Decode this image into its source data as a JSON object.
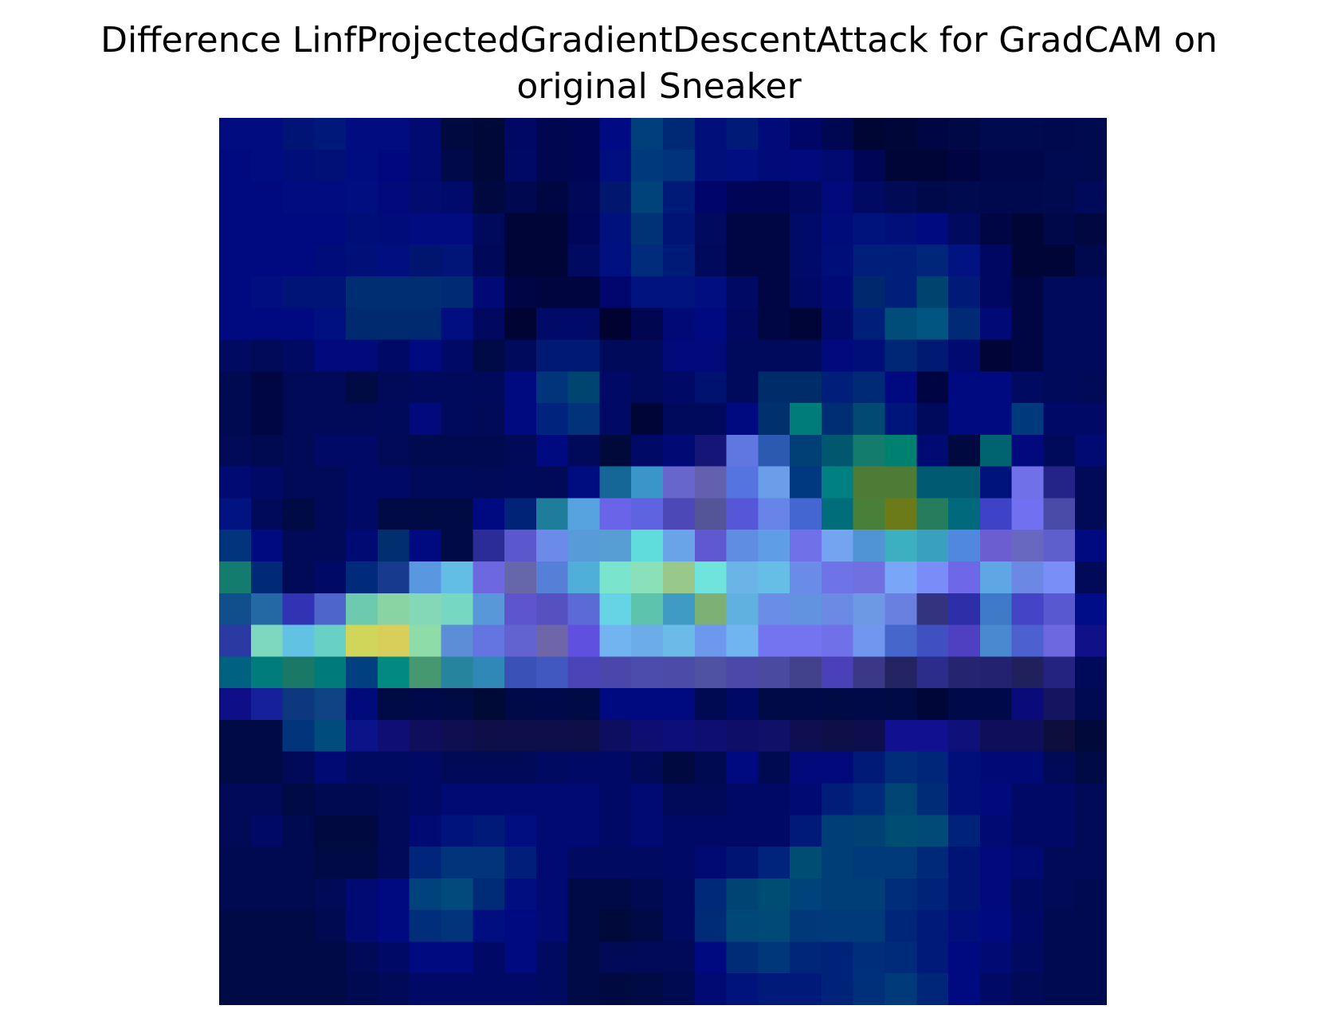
{
  "chart_data": {
    "type": "heatmap",
    "title": [
      "Difference LinfProjectedGradientDescentAttack for GradCAM on",
      "original Sneaker"
    ],
    "xlabel": "",
    "ylabel": "",
    "axes_visible": false,
    "grid": false,
    "legend": "none",
    "rows": 28,
    "cols": 28,
    "cells": [
      [
        "#000c80",
        "#000c80",
        "#001475",
        "#00187a",
        "#000c80",
        "#000c80",
        "#000a70",
        "#000a40",
        "#00083a",
        "#000866",
        "#000650",
        "#000654",
        "#000b83",
        "#013e7c",
        "#002975",
        "#000f7a",
        "#001a77",
        "#000b7a",
        "#000665",
        "#000752",
        "#000633",
        "#000638",
        "#000543",
        "#000846",
        "#000a4e",
        "#000a4e",
        "#00094d",
        "#000a4e"
      ],
      [
        "#000a80",
        "#000c80",
        "#000e7a",
        "#001077",
        "#000d80",
        "#000880",
        "#000a70",
        "#000a4a",
        "#00083a",
        "#000a66",
        "#000650",
        "#000654",
        "#000e80",
        "#013a7c",
        "#00337b",
        "#000f7a",
        "#000e80",
        "#000b7a",
        "#000a7a",
        "#000a70",
        "#000653",
        "#000538",
        "#000538",
        "#000541",
        "#00074a",
        "#00074a",
        "#000a50",
        "#000a4e"
      ],
      [
        "#000a80",
        "#000a80",
        "#000c80",
        "#000c80",
        "#000e80",
        "#000a7a",
        "#000c70",
        "#000a6a",
        "#000840",
        "#000850",
        "#000641",
        "#000857",
        "#00166f",
        "#00427a",
        "#001b77",
        "#00056b",
        "#000655",
        "#000653",
        "#000860",
        "#000a7a",
        "#000a62",
        "#000a55",
        "#000a4b",
        "#000a4e",
        "#00094d",
        "#00094d",
        "#000a4e",
        "#000a5a"
      ],
      [
        "#000a80",
        "#000a80",
        "#000a80",
        "#000a80",
        "#000e7a",
        "#000c7a",
        "#000c80",
        "#000c80",
        "#000a5c",
        "#000538",
        "#000538",
        "#000659",
        "#00117d",
        "#003276",
        "#001475",
        "#000a5f",
        "#000641",
        "#000641",
        "#000a68",
        "#000c7a",
        "#00137d",
        "#000f7a",
        "#000a80",
        "#000a5e",
        "#000643",
        "#000538",
        "#000849",
        "#000741"
      ],
      [
        "#000a80",
        "#000a80",
        "#000a80",
        "#000c7a",
        "#001079",
        "#000e80",
        "#001470",
        "#001577",
        "#00085a",
        "#000538",
        "#000538",
        "#000a60",
        "#00107e",
        "#002c7b",
        "#001a77",
        "#000a5c",
        "#000641",
        "#000641",
        "#000a68",
        "#000e7a",
        "#001f7a",
        "#001f7a",
        "#00267a",
        "#001380",
        "#000763",
        "#000538",
        "#000538",
        "#00094d"
      ],
      [
        "#000a80",
        "#000e80",
        "#001377",
        "#001477",
        "#002e73",
        "#002e73",
        "#002e73",
        "#002a74",
        "#000a76",
        "#000645",
        "#000540",
        "#000540",
        "#00066d",
        "#00137e",
        "#00137e",
        "#000e80",
        "#000a64",
        "#000641",
        "#000a66",
        "#000a76",
        "#00286d",
        "#001f7a",
        "#00436f",
        "#001a77",
        "#000763",
        "#000643",
        "#000a5c",
        "#000a5c"
      ],
      [
        "#000a80",
        "#000a80",
        "#000a80",
        "#00107e",
        "#002a70",
        "#002a70",
        "#002a70",
        "#000e7f",
        "#000860",
        "#000432",
        "#000a68",
        "#000a68",
        "#000330",
        "#000650",
        "#000a76",
        "#000a80",
        "#000860",
        "#000641",
        "#000537",
        "#000a6d",
        "#001f7a",
        "#004d79",
        "#005680",
        "#002a75",
        "#000a76",
        "#000643",
        "#000a5c",
        "#000a5c"
      ],
      [
        "#000a60",
        "#000a56",
        "#000a62",
        "#000a7a",
        "#000a7a",
        "#000a66",
        "#000a80",
        "#000a66",
        "#000a44",
        "#000a5c",
        "#001a74",
        "#001a74",
        "#000a5a",
        "#000a5a",
        "#000a7a",
        "#000a7a",
        "#000a5c",
        "#000a5c",
        "#000a5c",
        "#000a7a",
        "#000e7a",
        "#002775",
        "#001a74",
        "#000a70",
        "#000437",
        "#000543",
        "#000a5c",
        "#000a5c"
      ],
      [
        "#000a50",
        "#000641",
        "#000a56",
        "#000a56",
        "#000a44",
        "#000a56",
        "#000a5c",
        "#000a5c",
        "#000a5a",
        "#000a80",
        "#00357c",
        "#004570",
        "#000a66",
        "#000a5c",
        "#000a66",
        "#001270",
        "#000a5c",
        "#002c6a",
        "#002c6a",
        "#001f7a",
        "#002a75",
        "#000a80",
        "#000541",
        "#000a80",
        "#000a80",
        "#000a60",
        "#000a5a",
        "#000a56"
      ],
      [
        "#000a50",
        "#000641",
        "#000a56",
        "#000a56",
        "#000a56",
        "#000a5a",
        "#000a7a",
        "#000a5c",
        "#000a56",
        "#000a80",
        "#00237e",
        "#00337a",
        "#000a66",
        "#000538",
        "#000a5c",
        "#000a5c",
        "#000a80",
        "#00306e",
        "#007c7a",
        "#002e74",
        "#004a74",
        "#00157c",
        "#000a5c",
        "#000a80",
        "#000a80",
        "#003a7c",
        "#000a66",
        "#000a66"
      ],
      [
        "#000a56",
        "#000a50",
        "#000a56",
        "#000a66",
        "#000a66",
        "#000a56",
        "#000a50",
        "#000a50",
        "#000a50",
        "#000a56",
        "#000a80",
        "#000a5a",
        "#000a3a",
        "#000a66",
        "#000a74",
        "#141576",
        "#6076e0",
        "#2b5ab0",
        "#004076",
        "#00576e",
        "#157b6c",
        "#00806f",
        "#000a73",
        "#000940",
        "#00636f",
        "#000a7d",
        "#000a5a",
        "#000a73"
      ],
      [
        "#000a73",
        "#000a66",
        "#000a56",
        "#000a56",
        "#000a66",
        "#000a66",
        "#000a5a",
        "#000a5a",
        "#000a56",
        "#000a5a",
        "#000a56",
        "#000d80",
        "#146796",
        "#3a96c6",
        "#6666cc",
        "#6360b0",
        "#5574e0",
        "#6b9ee8",
        "#00397f",
        "#008080",
        "#4e7c37",
        "#4e7c37",
        "#005a72",
        "#005a72",
        "#00137c",
        "#7070e8",
        "#232388",
        "#000a56"
      ],
      [
        "#001380",
        "#000a5a",
        "#000a44",
        "#000a56",
        "#000a66",
        "#000a44",
        "#000a44",
        "#000a44",
        "#000a80",
        "#002277",
        "#1f7d9c",
        "#57a3e0",
        "#6a64e8",
        "#5e64e0",
        "#4c48b8",
        "#535598",
        "#5656d8",
        "#6784e8",
        "#4466d0",
        "#006d7b",
        "#48803a",
        "#6b7b1a",
        "#267d5e",
        "#006a7c",
        "#3e42c6",
        "#7070f0",
        "#4a4aa8",
        "#000a56"
      ],
      [
        "#00357d",
        "#000a80",
        "#000a56",
        "#000a56",
        "#000a73",
        "#002e6f",
        "#000a80",
        "#000a44",
        "#2c2c99",
        "#5a58cc",
        "#6b8aea",
        "#579bd8",
        "#569ed4",
        "#60dcdc",
        "#6aa4e8",
        "#6058d0",
        "#5f8ee0",
        "#5f9ee6",
        "#7070e8",
        "#74a4f0",
        "#5094d6",
        "#3cb0c0",
        "#3aa0c0",
        "#5088e0",
        "#6a5ed0",
        "#6868c0",
        "#5e5ecc",
        "#000a80"
      ],
      [
        "#147c6e",
        "#002977",
        "#000a56",
        "#000a66",
        "#002a7b",
        "#173a8e",
        "#5998e0",
        "#62bee4",
        "#6e68e0",
        "#6666aa",
        "#5680d8",
        "#50aed8",
        "#7ae4cc",
        "#8ae0b8",
        "#98c88a",
        "#6ee4dc",
        "#6ab4e8",
        "#66bee6",
        "#6a8ce8",
        "#6e74e6",
        "#7070e0",
        "#7aa6f8",
        "#7a8cf8",
        "#6e68e8",
        "#5ea6e4",
        "#6a88e4",
        "#7a8ef8",
        "#000a56"
      ],
      [
        "#114f8c",
        "#2468a4",
        "#3232b4",
        "#4e66cc",
        "#6ecaae",
        "#8ad4a4",
        "#84d8b8",
        "#76d8c0",
        "#5898d8",
        "#5e54cc",
        "#5650c0",
        "#5c6ad8",
        "#66d4e4",
        "#5cc4ac",
        "#3e9cc4",
        "#7cb074",
        "#60b0e0",
        "#6a8ee8",
        "#6094e0",
        "#6a8ae4",
        "#6c98e4",
        "#6a80e0",
        "#333380",
        "#2e2ea8",
        "#3e7ac8",
        "#4444c6",
        "#5858d0",
        "#000d88"
      ],
      [
        "#2a3aa2",
        "#7ed8c0",
        "#62c2e4",
        "#68d0c4",
        "#cfd65a",
        "#d8ce5a",
        "#8edca8",
        "#5c8ed8",
        "#6474e0",
        "#6262d0",
        "#6e66a8",
        "#6050e0",
        "#72b4f0",
        "#6cace8",
        "#6cbae8",
        "#6e98ee",
        "#70b4f0",
        "#7474f0",
        "#7474f0",
        "#7070e8",
        "#7096f0",
        "#4666cc",
        "#4050c0",
        "#4e40c0",
        "#4a88d0",
        "#4c60d0",
        "#6e68e0",
        "#101088"
      ],
      [
        "#006280",
        "#007c7c",
        "#1a7866",
        "#007a7a",
        "#004080",
        "#008a82",
        "#469870",
        "#26849e",
        "#3088b8",
        "#3a52b8",
        "#4058c0",
        "#4a44b8",
        "#4a46aa",
        "#4c4cac",
        "#4c4ca8",
        "#4e52a0",
        "#4c48aa",
        "#4a4aa0",
        "#42428c",
        "#4a40b8",
        "#3c3888",
        "#242462",
        "#2c2c8c",
        "#242470",
        "#222270",
        "#20205c",
        "#242480",
        "#000a5a"
      ],
      [
        "#0e0e88",
        "#16209a",
        "#0d3880",
        "#0e4484",
        "#000a7a",
        "#000a44",
        "#000a4a",
        "#000a44",
        "#000a36",
        "#000a48",
        "#000a4a",
        "#000a44",
        "#000a80",
        "#000a80",
        "#000a80",
        "#000a52",
        "#000a66",
        "#000a44",
        "#000a48",
        "#000a44",
        "#000a48",
        "#000a44",
        "#000638",
        "#000a4a",
        "#000a4a",
        "#0a0a7a",
        "#141460",
        "#000a52"
      ],
      [
        "#000a44",
        "#000a44",
        "#00357c",
        "#004c7c",
        "#0a1488",
        "#0e0e74",
        "#0e0e5c",
        "#0e0e50",
        "#0e0e48",
        "#0e0e4a",
        "#0e0e4a",
        "#0e0e48",
        "#0e0e60",
        "#0e0e70",
        "#0e0e7a",
        "#0e0e72",
        "#0e0e68",
        "#101068",
        "#0e0e50",
        "#0e0e48",
        "#0e0e4c",
        "#101090",
        "#101090",
        "#10107a",
        "#0e0e5a",
        "#0e0e5a",
        "#0e0e3c",
        "#000a3a"
      ],
      [
        "#000a44",
        "#000a44",
        "#000a56",
        "#000a72",
        "#000a60",
        "#000a60",
        "#000a66",
        "#000a56",
        "#000a56",
        "#000a56",
        "#000a60",
        "#000a66",
        "#000a66",
        "#000a56",
        "#000a40",
        "#000a50",
        "#000a80",
        "#000a50",
        "#000a7a",
        "#000a7a",
        "#001a78",
        "#002d7a",
        "#00267a",
        "#000f7a",
        "#000a76",
        "#000a76",
        "#000a56",
        "#000a44"
      ],
      [
        "#000a56",
        "#000a56",
        "#000a44",
        "#000a50",
        "#000a50",
        "#000a56",
        "#000a66",
        "#000a73",
        "#000a73",
        "#000a73",
        "#000a73",
        "#000a73",
        "#000a66",
        "#000a73",
        "#000a56",
        "#000a56",
        "#000a66",
        "#000a66",
        "#000a73",
        "#001d7a",
        "#002a7b",
        "#004573",
        "#002c77",
        "#000f7a",
        "#000a7a",
        "#000a66",
        "#000a66",
        "#000a56"
      ],
      [
        "#000a56",
        "#000a66",
        "#000a50",
        "#000a40",
        "#000a40",
        "#000a56",
        "#000a73",
        "#00137c",
        "#001a7a",
        "#000e80",
        "#000a73",
        "#000a73",
        "#000a66",
        "#000a73",
        "#000a66",
        "#000a66",
        "#000a66",
        "#000a66",
        "#001a7a",
        "#003e77",
        "#004073",
        "#004d74",
        "#004a77",
        "#00237a",
        "#000a73",
        "#000a66",
        "#000a66",
        "#000a56"
      ],
      [
        "#000a50",
        "#000a50",
        "#000a50",
        "#000a44",
        "#000a44",
        "#000a56",
        "#00267c",
        "#00357c",
        "#00357c",
        "#001f7a",
        "#000a73",
        "#000a60",
        "#000a60",
        "#000a60",
        "#000a66",
        "#000a73",
        "#001474",
        "#00237c",
        "#004d74",
        "#003e77",
        "#003a7a",
        "#003a7a",
        "#00297a",
        "#001475",
        "#000a7a",
        "#000a73",
        "#000a56",
        "#000a56"
      ],
      [
        "#000a50",
        "#000a50",
        "#000a50",
        "#000a56",
        "#000a73",
        "#000a80",
        "#00437c",
        "#004b7c",
        "#002c77",
        "#000e80",
        "#000a73",
        "#000a44",
        "#000a44",
        "#000a50",
        "#000a60",
        "#00297a",
        "#004474",
        "#004d74",
        "#00437c",
        "#003e77",
        "#003e77",
        "#002d7a",
        "#00237a",
        "#001475",
        "#000a7a",
        "#000a60",
        "#000a56",
        "#000a50"
      ],
      [
        "#000a44",
        "#000a44",
        "#000a44",
        "#000a50",
        "#000a73",
        "#000a80",
        "#002e7a",
        "#00357c",
        "#000e80",
        "#000a80",
        "#000a73",
        "#000a44",
        "#000a3a",
        "#000a44",
        "#000a60",
        "#002c77",
        "#004877",
        "#004a77",
        "#00387a",
        "#003a7a",
        "#003a7a",
        "#00267a",
        "#001a7a",
        "#000f7a",
        "#000a80",
        "#000a66",
        "#000a50",
        "#000a50"
      ],
      [
        "#000a44",
        "#000a44",
        "#000a44",
        "#000a44",
        "#000a56",
        "#000a66",
        "#000a80",
        "#000a80",
        "#000a66",
        "#000a80",
        "#000a60",
        "#000a44",
        "#000a56",
        "#000a56",
        "#000a56",
        "#000a80",
        "#002c77",
        "#00367a",
        "#00267a",
        "#00237a",
        "#002e7a",
        "#002a7a",
        "#001a7a",
        "#000a80",
        "#000a73",
        "#000a60",
        "#000a50",
        "#000a50"
      ],
      [
        "#000a44",
        "#000a44",
        "#000a44",
        "#000a44",
        "#000a50",
        "#000a56",
        "#000a66",
        "#000a66",
        "#000a66",
        "#000a66",
        "#000a60",
        "#000a44",
        "#000a40",
        "#000a44",
        "#000a50",
        "#000a73",
        "#00137c",
        "#001a7a",
        "#001a7a",
        "#00237a",
        "#00307a",
        "#003a7a",
        "#00267a",
        "#000a80",
        "#000a66",
        "#000a56",
        "#000a50",
        "#000a50"
      ]
    ]
  }
}
